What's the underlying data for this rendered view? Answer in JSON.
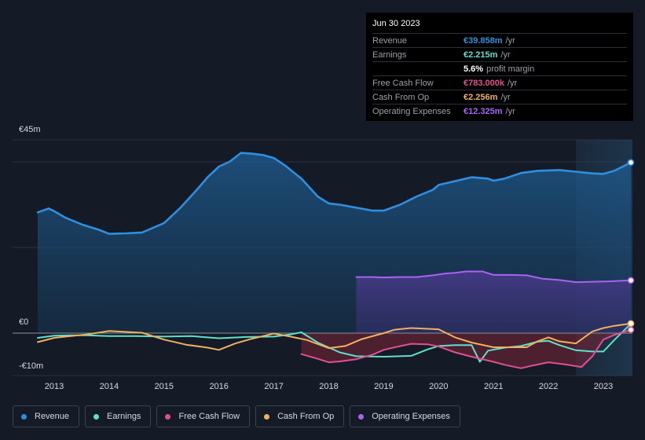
{
  "tooltip": {
    "date": "Jun 30 2023",
    "rows": [
      {
        "label": "Revenue",
        "value": "€39.858m",
        "unit": "/yr",
        "color": "#2e8fe0"
      },
      {
        "label": "Earnings",
        "value": "€2.215m",
        "unit": "/yr",
        "color": "#5ee0cc"
      },
      {
        "label": "",
        "value": "5.6%",
        "unit": "profit margin",
        "color": "#ffffff"
      },
      {
        "label": "Free Cash Flow",
        "value": "€783.000k",
        "unit": "/yr",
        "color": "#e0508e"
      },
      {
        "label": "Cash From Op",
        "value": "€2.256m",
        "unit": "/yr",
        "color": "#f0b060"
      },
      {
        "label": "Operating Expenses",
        "value": "€12.325m",
        "unit": "/yr",
        "color": "#a864f0"
      }
    ]
  },
  "legend": [
    {
      "label": "Revenue",
      "color": "#2e8fe0"
    },
    {
      "label": "Earnings",
      "color": "#5ee0cc"
    },
    {
      "label": "Free Cash Flow",
      "color": "#e0508e"
    },
    {
      "label": "Cash From Op",
      "color": "#f0b060"
    },
    {
      "label": "Operating Expenses",
      "color": "#a864f0"
    }
  ],
  "chart_data": {
    "type": "area",
    "title": "",
    "y_tick_labels": [
      "€45m",
      "€0",
      "-€10m"
    ],
    "ylim": [
      -10,
      45
    ],
    "xlim": [
      2012.7,
      2023.5
    ],
    "x_ticks": [
      2013,
      2014,
      2015,
      2016,
      2017,
      2018,
      2019,
      2020,
      2021,
      2022,
      2023
    ],
    "x_tick_labels": [
      "2013",
      "2014",
      "2015",
      "2016",
      "2017",
      "2018",
      "2019",
      "2020",
      "2021",
      "2022",
      "2023"
    ],
    "highlight_from": 2022.5,
    "series": [
      {
        "name": "Revenue",
        "color": "#2e8fe0",
        "fill": true,
        "points": [
          [
            2012.7,
            28.2
          ],
          [
            2012.9,
            29.1
          ],
          [
            2013.0,
            28.5
          ],
          [
            2013.2,
            27
          ],
          [
            2013.5,
            25.4
          ],
          [
            2013.8,
            24.2
          ],
          [
            2014.0,
            23.2
          ],
          [
            2014.3,
            23.3
          ],
          [
            2014.6,
            23.5
          ],
          [
            2014.8,
            24.6
          ],
          [
            2015.0,
            25.7
          ],
          [
            2015.3,
            29.3
          ],
          [
            2015.6,
            33.5
          ],
          [
            2015.8,
            36.5
          ],
          [
            2016.0,
            38.9
          ],
          [
            2016.2,
            40.1
          ],
          [
            2016.4,
            42.1
          ],
          [
            2016.6,
            41.9
          ],
          [
            2016.8,
            41.6
          ],
          [
            2017.0,
            40.9
          ],
          [
            2017.2,
            39.2
          ],
          [
            2017.5,
            36.1
          ],
          [
            2017.8,
            31.9
          ],
          [
            2018.0,
            30.3
          ],
          [
            2018.2,
            30
          ],
          [
            2018.5,
            29.3
          ],
          [
            2018.8,
            28.6
          ],
          [
            2019.0,
            28.6
          ],
          [
            2019.3,
            30
          ],
          [
            2019.6,
            31.9
          ],
          [
            2019.9,
            33.5
          ],
          [
            2020.0,
            34.6
          ],
          [
            2020.3,
            35.5
          ],
          [
            2020.6,
            36.4
          ],
          [
            2020.9,
            36.1
          ],
          [
            2021.0,
            35.6
          ],
          [
            2021.2,
            36.1
          ],
          [
            2021.5,
            37.4
          ],
          [
            2021.8,
            37.9
          ],
          [
            2022.0,
            38
          ],
          [
            2022.2,
            38.1
          ],
          [
            2022.5,
            37.7
          ],
          [
            2022.8,
            37.3
          ],
          [
            2023.0,
            37.2
          ],
          [
            2023.2,
            37.9
          ],
          [
            2023.5,
            39.858
          ]
        ]
      },
      {
        "name": "Operating Expenses",
        "color": "#a864f0",
        "fill": true,
        "points": [
          [
            2018.5,
            13.1
          ],
          [
            2018.8,
            13.1
          ],
          [
            2019.0,
            13
          ],
          [
            2019.3,
            13.1
          ],
          [
            2019.6,
            13.1
          ],
          [
            2019.9,
            13.5
          ],
          [
            2020.1,
            13.9
          ],
          [
            2020.3,
            14.1
          ],
          [
            2020.5,
            14.4
          ],
          [
            2020.8,
            14.4
          ],
          [
            2021.0,
            13.6
          ],
          [
            2021.3,
            13.6
          ],
          [
            2021.6,
            13.5
          ],
          [
            2021.9,
            12.7
          ],
          [
            2022.2,
            12.4
          ],
          [
            2022.5,
            11.9
          ],
          [
            2022.8,
            12
          ],
          [
            2023.1,
            12.1
          ],
          [
            2023.5,
            12.325
          ]
        ]
      },
      {
        "name": "Earnings",
        "color": "#5ee0cc",
        "fill": false,
        "points": [
          [
            2012.7,
            -1.1
          ],
          [
            2013.0,
            -0.6
          ],
          [
            2013.3,
            -0.5
          ],
          [
            2013.6,
            -0.5
          ],
          [
            2014.0,
            -0.7
          ],
          [
            2014.5,
            -0.7
          ],
          [
            2015.0,
            -0.8
          ],
          [
            2015.5,
            -0.7
          ],
          [
            2016.0,
            -1.2
          ],
          [
            2016.5,
            -0.9
          ],
          [
            2017.0,
            -0.8
          ],
          [
            2017.3,
            -0.3
          ],
          [
            2017.5,
            0.2
          ],
          [
            2017.8,
            -2.2
          ],
          [
            2018.2,
            -4.5
          ],
          [
            2018.5,
            -5.4
          ],
          [
            2019.0,
            -5.5
          ],
          [
            2019.5,
            -5.3
          ],
          [
            2019.8,
            -3.8
          ],
          [
            2020.0,
            -3
          ],
          [
            2020.3,
            -2.8
          ],
          [
            2020.6,
            -2.8
          ],
          [
            2020.75,
            -6.7
          ],
          [
            2020.9,
            -4.1
          ],
          [
            2021.2,
            -3.4
          ],
          [
            2021.5,
            -3
          ],
          [
            2021.8,
            -2
          ],
          [
            2022.0,
            -1.8
          ],
          [
            2022.2,
            -2.8
          ],
          [
            2022.5,
            -4
          ],
          [
            2022.8,
            -4.3
          ],
          [
            2023.0,
            -4.3
          ],
          [
            2023.2,
            -1.6
          ],
          [
            2023.5,
            2.215
          ]
        ]
      },
      {
        "name": "Free Cash Flow",
        "color": "#e0508e",
        "fill": false,
        "points": [
          [
            2017.5,
            -4.9
          ],
          [
            2017.8,
            -6
          ],
          [
            2018.0,
            -6.8
          ],
          [
            2018.2,
            -6.6
          ],
          [
            2018.5,
            -6.1
          ],
          [
            2018.8,
            -5
          ],
          [
            2019.0,
            -3.9
          ],
          [
            2019.2,
            -3.3
          ],
          [
            2019.5,
            -2.5
          ],
          [
            2019.8,
            -2.6
          ],
          [
            2020.0,
            -3.1
          ],
          [
            2020.3,
            -4.5
          ],
          [
            2020.6,
            -5.5
          ],
          [
            2021.0,
            -6.7
          ],
          [
            2021.2,
            -7.4
          ],
          [
            2021.5,
            -8.2
          ],
          [
            2021.7,
            -7.6
          ],
          [
            2022.0,
            -6.8
          ],
          [
            2022.3,
            -7.3
          ],
          [
            2022.6,
            -7.9
          ],
          [
            2022.8,
            -5.4
          ],
          [
            2023.0,
            -1.5
          ],
          [
            2023.2,
            -0.4
          ],
          [
            2023.5,
            0.783
          ]
        ]
      },
      {
        "name": "Cash From Op",
        "color": "#f0b060",
        "fill": false,
        "points": [
          [
            2012.7,
            -2.1
          ],
          [
            2013.0,
            -1.1
          ],
          [
            2013.3,
            -0.7
          ],
          [
            2013.6,
            -0.3
          ],
          [
            2014.0,
            0.5
          ],
          [
            2014.3,
            0.3
          ],
          [
            2014.6,
            0.1
          ],
          [
            2015.0,
            -1.5
          ],
          [
            2015.4,
            -2.7
          ],
          [
            2015.8,
            -3.4
          ],
          [
            2016.0,
            -3.9
          ],
          [
            2016.3,
            -2.4
          ],
          [
            2016.6,
            -1.3
          ],
          [
            2017.0,
            -0.1
          ],
          [
            2017.3,
            -0.8
          ],
          [
            2017.6,
            -1.6
          ],
          [
            2018.0,
            -3.5
          ],
          [
            2018.3,
            -3
          ],
          [
            2018.6,
            -1.4
          ],
          [
            2019.0,
            0
          ],
          [
            2019.2,
            0.8
          ],
          [
            2019.5,
            1.2
          ],
          [
            2020.0,
            0.9
          ],
          [
            2020.3,
            -1
          ],
          [
            2020.6,
            -2.2
          ],
          [
            2021.0,
            -3.3
          ],
          [
            2021.3,
            -3.3
          ],
          [
            2021.6,
            -3.3
          ],
          [
            2021.8,
            -1.9
          ],
          [
            2022.0,
            -1
          ],
          [
            2022.2,
            -1.9
          ],
          [
            2022.5,
            -2.4
          ],
          [
            2022.8,
            0.4
          ],
          [
            2023.0,
            1.2
          ],
          [
            2023.2,
            1.7
          ],
          [
            2023.5,
            2.256
          ]
        ]
      }
    ]
  }
}
